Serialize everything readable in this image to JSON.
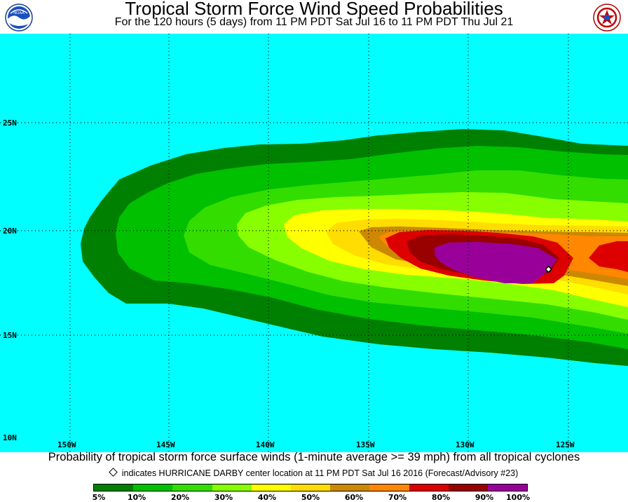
{
  "header": {
    "title": "Tropical Storm Force Wind Speed Probabilities",
    "subtitle": "For the 120 hours (5 days) from 11 PM PDT Sat Jul 16 to 11 PM PDT Thu Jul 21"
  },
  "logos": {
    "left": "NOAA",
    "right": "NATIONAL WEATHER SERVICE"
  },
  "map": {
    "ocean_color": "#00ffff",
    "grid_style": "dotted",
    "lat_labels": [
      "25N",
      "20N",
      "15N",
      "10N"
    ],
    "lon_labels": [
      "150W",
      "145W",
      "140W",
      "135W",
      "130W",
      "125W"
    ],
    "storm_center": {
      "name": "HURRICANE DARBY",
      "lon": -126.0,
      "lat": 18.1
    }
  },
  "caption": "Probability of tropical storm force surface winds (1-minute average >= 39 mph) from all tropical cyclones",
  "legend_note": "indicates HURRICANE DARBY center location at 11 PM PDT Sat Jul 16 2016 (Forecast/Advisory #23)",
  "colorbar": {
    "colors": [
      "#008000",
      "#00c000",
      "#33dd00",
      "#88ff00",
      "#ffff00",
      "#ffdd00",
      "#cc8800",
      "#ff8800",
      "#dd0000",
      "#990000",
      "#990099"
    ],
    "tick_labels": [
      "5%",
      "10%",
      "20%",
      "30%",
      "40%",
      "50%",
      "60%",
      "70%",
      "80%",
      "90%",
      "100%"
    ]
  }
}
